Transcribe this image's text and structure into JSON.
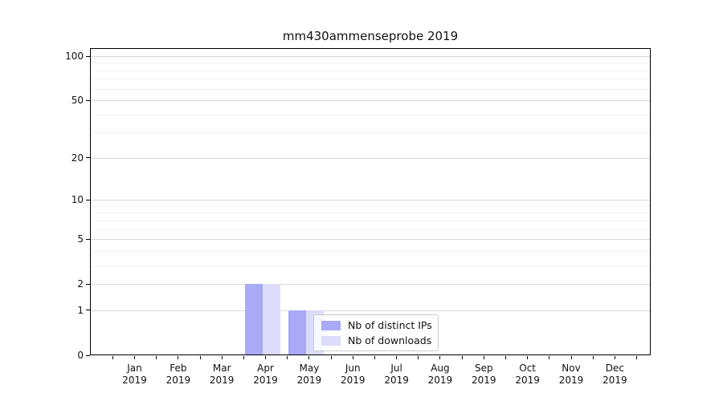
{
  "title": "mm430ammenseprobe 2019",
  "chart_data": {
    "type": "bar",
    "title": "mm430ammenseprobe 2019",
    "categories": [
      "Jan 2019",
      "Feb 2019",
      "Mar 2019",
      "Apr 2019",
      "May 2019",
      "Jun 2019",
      "Jul 2019",
      "Aug 2019",
      "Sep 2019",
      "Oct 2019",
      "Nov 2019",
      "Dec 2019"
    ],
    "series": [
      {
        "name": "Nb of distinct IPs",
        "color": "#a9a9f8",
        "values": [
          0,
          0,
          0,
          2,
          1,
          0,
          0,
          0,
          0,
          0,
          0,
          0
        ]
      },
      {
        "name": "Nb of downloads",
        "color": "#dcdcfa",
        "values": [
          0,
          0,
          0,
          2,
          1,
          0,
          0,
          0,
          0,
          0,
          0,
          0
        ]
      }
    ],
    "xlabel": "",
    "ylabel": "",
    "yscale": "symlog (log1p)",
    "ylim": [
      0,
      113
    ],
    "y_major_ticks": [
      0,
      1,
      2,
      5,
      10,
      20,
      50,
      100
    ],
    "y_minor_ticks": [
      3,
      4,
      6,
      7,
      8,
      9,
      30,
      40,
      60,
      70,
      80,
      90
    ],
    "grid": "horizontal major and minor gridlines",
    "legend_position": "inside lower center"
  },
  "x_axis": {
    "months": [
      "Jan",
      "Feb",
      "Mar",
      "Apr",
      "May",
      "Jun",
      "Jul",
      "Aug",
      "Sep",
      "Oct",
      "Nov",
      "Dec"
    ],
    "year": "2019"
  },
  "legend": {
    "items": [
      {
        "label": "Nb of distinct IPs",
        "color": "#a9a9f8"
      },
      {
        "label": "Nb of downloads",
        "color": "#dcdcfa"
      }
    ]
  },
  "colors": {
    "bar_distinct_ips": "#a9a9f8",
    "bar_downloads": "#dcdcfa",
    "grid_major": "#d9d9d9",
    "grid_minor": "#f0f0f0",
    "spine": "#000000",
    "text": "#111111",
    "legend_border": "#cccccc",
    "background": "#ffffff"
  }
}
